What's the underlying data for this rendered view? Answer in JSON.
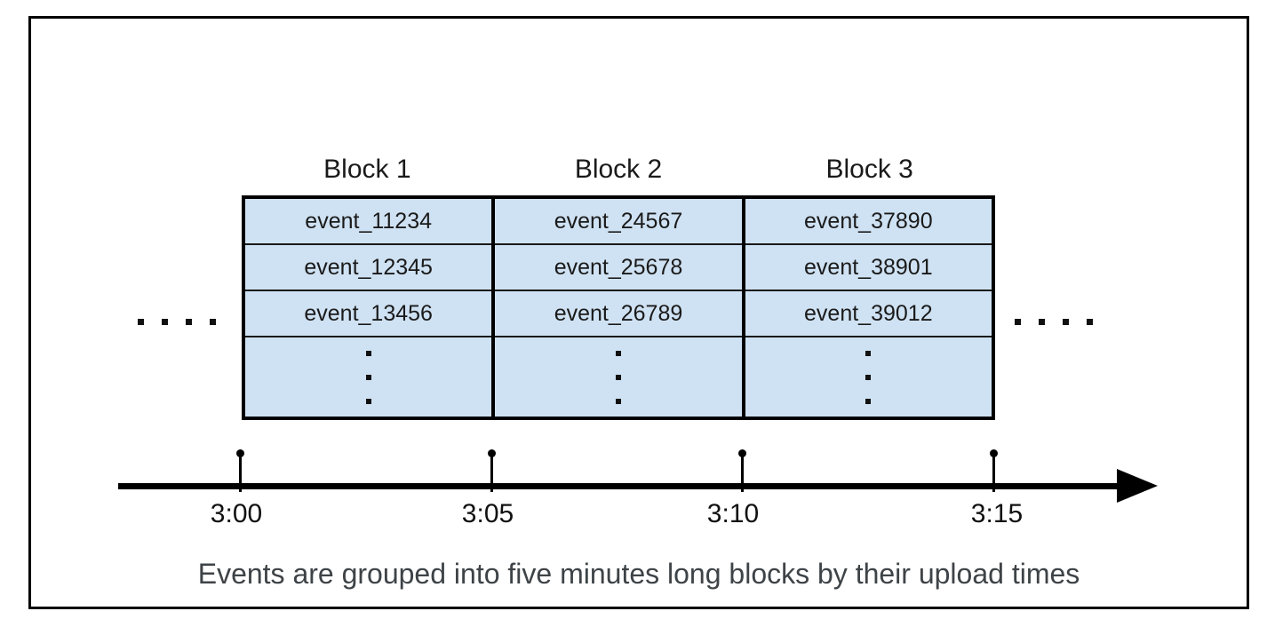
{
  "figure": {
    "caption": "Events are grouped into five minutes long blocks by their upload times",
    "blocks": [
      {
        "label": "Block 1",
        "events": [
          "event_11234",
          "event_12345",
          "event_13456"
        ]
      },
      {
        "label": "Block 2",
        "events": [
          "event_24567",
          "event_25678",
          "event_26789"
        ]
      },
      {
        "label": "Block 3",
        "events": [
          "event_37890",
          "event_38901",
          "event_39012"
        ]
      }
    ],
    "timeline": {
      "tick_labels": [
        "3:00",
        "3:05",
        "3:10",
        "3:15"
      ]
    },
    "icons": {
      "horizontal_ellipsis": "horizontal-ellipsis-icon",
      "vertical_ellipsis": "vertical-ellipsis-icon",
      "arrowhead": "arrowhead-icon",
      "tick_pin": "tick-pin-icon"
    },
    "colors": {
      "block_fill": "#cfe2f3",
      "border": "#000000",
      "caption_text": "#3e4347"
    }
  }
}
